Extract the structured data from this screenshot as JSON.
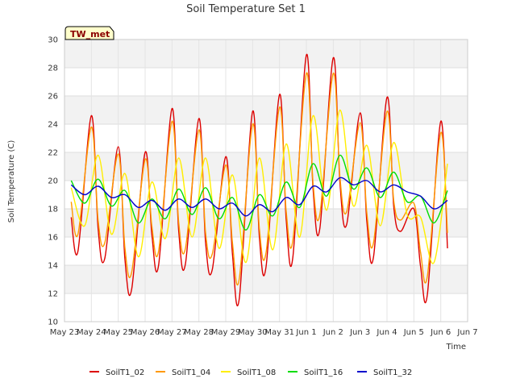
{
  "chart_data": {
    "type": "line",
    "title": "Soil Temperature Set 1",
    "xlabel": "Time",
    "ylabel": "Soil Temperature (C)",
    "badge": "TW_met",
    "ylim": [
      10,
      30
    ],
    "yticks": [
      10,
      12,
      14,
      16,
      18,
      20,
      22,
      24,
      26,
      28,
      30
    ],
    "xlim": [
      "2023-05-23",
      "2023-06-07"
    ],
    "xticks": [
      "May 23",
      "May 24",
      "May 25",
      "May 26",
      "May 27",
      "May 28",
      "May 29",
      "May 30",
      "May 31",
      "Jun 1",
      "Jun 2",
      "Jun 3",
      "Jun 4",
      "Jun 5",
      "Jun 6",
      "Jun 7"
    ],
    "grid": true,
    "legend_position": "bottom",
    "series": [
      {
        "name": "SoilT1_02",
        "color": "#dd0000",
        "x": [
          "May 23 06:00",
          "May 23 12:00",
          "May 24 00:00",
          "May 24 06:00",
          "May 24 12:00",
          "May 25 00:00",
          "May 25 06:00",
          "May 25 12:00",
          "May 26 00:00",
          "May 26 06:00",
          "May 26 12:00",
          "May 27 00:00",
          "May 27 06:00",
          "May 27 12:00",
          "May 28 00:00",
          "May 28 06:00",
          "May 28 12:00",
          "May 29 00:00",
          "May 29 06:00",
          "May 29 12:00",
          "May 30 00:00",
          "May 30 06:00",
          "May 30 12:00",
          "May 31 00:00",
          "May 31 06:00",
          "May 31 12:00",
          "Jun 1 00:00",
          "Jun 1 06:00",
          "Jun 1 12:00",
          "Jun 2 00:00",
          "Jun 2 06:00",
          "Jun 2 12:00",
          "Jun 3 00:00",
          "Jun 3 06:00",
          "Jun 3 12:00",
          "Jun 4 00:00",
          "Jun 4 06:00",
          "Jun 4 12:00",
          "Jun 5 00:00",
          "Jun 5 06:00",
          "Jun 5 12:00",
          "Jun 6 00:00",
          "Jun 6 06:00"
        ],
        "y": [
          17.4,
          15.0,
          24.6,
          16.6,
          14.5,
          22.4,
          14.4,
          12.3,
          22.0,
          16.2,
          14.0,
          25.1,
          16.4,
          14.1,
          24.4,
          15.6,
          13.7,
          21.7,
          14.8,
          11.6,
          24.9,
          16.0,
          13.9,
          26.1,
          17.2,
          14.6,
          28.9,
          19.4,
          16.6,
          28.7,
          19.8,
          16.9,
          24.8,
          17.1,
          14.6,
          25.9,
          18.2,
          16.4,
          18.0,
          13.9,
          11.9,
          24.2,
          15.2
        ]
      },
      {
        "name": "SoilT1_04",
        "color": "#ff9900",
        "x": [
          "May 23 06:00",
          "May 23 12:00",
          "May 24 00:00",
          "May 24 06:00",
          "May 24 12:00",
          "May 25 00:00",
          "May 25 06:00",
          "May 25 12:00",
          "May 26 00:00",
          "May 26 06:00",
          "May 26 12:00",
          "May 27 00:00",
          "May 27 06:00",
          "May 27 12:00",
          "May 28 00:00",
          "May 28 06:00",
          "May 28 12:00",
          "May 29 00:00",
          "May 29 06:00",
          "May 29 12:00",
          "May 30 00:00",
          "May 30 06:00",
          "May 30 12:00",
          "May 31 00:00",
          "May 31 06:00",
          "May 31 12:00",
          "Jun 1 00:00",
          "Jun 1 06:00",
          "Jun 1 12:00",
          "Jun 2 00:00",
          "Jun 2 06:00",
          "Jun 2 12:00",
          "Jun 3 00:00",
          "Jun 3 06:00",
          "Jun 3 12:00",
          "Jun 4 00:00",
          "Jun 4 06:00",
          "Jun 4 12:00",
          "Jun 5 00:00",
          "Jun 5 06:00",
          "Jun 5 12:00",
          "Jun 6 00:00",
          "Jun 6 06:00"
        ],
        "y": [
          18.5,
          16.2,
          23.8,
          17.2,
          15.6,
          21.9,
          15.2,
          13.5,
          21.5,
          16.8,
          15.0,
          24.2,
          17.0,
          15.2,
          23.6,
          16.3,
          14.8,
          21.1,
          15.6,
          13.0,
          24.0,
          16.6,
          14.9,
          25.2,
          17.8,
          15.8,
          27.6,
          19.8,
          17.6,
          27.6,
          20.2,
          17.8,
          24.1,
          17.7,
          15.6,
          24.9,
          18.6,
          17.2,
          18.4,
          14.9,
          13.2,
          23.4,
          16.3
        ]
      },
      {
        "name": "SoilT1_08",
        "color": "#ffee00",
        "x": [
          "May 23 06:00",
          "May 23 18:00",
          "May 24 06:00",
          "May 24 18:00",
          "May 25 06:00",
          "May 25 18:00",
          "May 26 06:00",
          "May 26 18:00",
          "May 27 06:00",
          "May 27 18:00",
          "May 28 06:00",
          "May 28 18:00",
          "May 29 06:00",
          "May 29 18:00",
          "May 30 06:00",
          "May 30 18:00",
          "May 31 06:00",
          "May 31 18:00",
          "Jun 1 06:00",
          "Jun 1 18:00",
          "Jun 2 06:00",
          "Jun 2 18:00",
          "Jun 3 06:00",
          "Jun 3 18:00",
          "Jun 4 06:00",
          "Jun 4 18:00",
          "Jun 5 06:00",
          "Jun 5 18:00",
          "Jun 6 06:00"
        ],
        "y": [
          19.5,
          16.8,
          21.8,
          16.2,
          20.5,
          14.6,
          19.9,
          15.9,
          21.6,
          16.0,
          21.6,
          15.2,
          20.4,
          14.2,
          21.6,
          15.1,
          22.6,
          16.0,
          24.6,
          17.9,
          25.0,
          18.2,
          22.5,
          16.8,
          22.7,
          17.6,
          17.4,
          14.2,
          21.2
        ]
      },
      {
        "name": "SoilT1_16",
        "color": "#00dd00",
        "x": [
          "May 23 06:00",
          "May 23 18:00",
          "May 24 06:00",
          "May 24 18:00",
          "May 25 06:00",
          "May 25 18:00",
          "May 26 06:00",
          "May 26 18:00",
          "May 27 06:00",
          "May 27 18:00",
          "May 28 06:00",
          "May 28 18:00",
          "May 29 06:00",
          "May 29 18:00",
          "May 30 06:00",
          "May 30 18:00",
          "May 31 06:00",
          "May 31 18:00",
          "Jun 1 06:00",
          "Jun 1 18:00",
          "Jun 2 06:00",
          "Jun 2 18:00",
          "Jun 3 06:00",
          "Jun 3 18:00",
          "Jun 4 06:00",
          "Jun 4 18:00",
          "Jun 5 06:00",
          "Jun 5 18:00",
          "Jun 6 06:00"
        ],
        "y": [
          20.0,
          18.4,
          20.1,
          18.2,
          19.3,
          17.0,
          18.7,
          17.3,
          19.4,
          17.6,
          19.5,
          17.3,
          18.8,
          16.5,
          19.0,
          17.5,
          19.9,
          18.1,
          21.2,
          18.9,
          21.8,
          19.4,
          20.9,
          18.8,
          20.6,
          18.5,
          18.9,
          17.0,
          19.3
        ]
      },
      {
        "name": "SoilT1_32",
        "color": "#0000cc",
        "x": [
          "May 23 06:00",
          "May 23 18:00",
          "May 24 06:00",
          "May 24 18:00",
          "May 25 06:00",
          "May 25 18:00",
          "May 26 06:00",
          "May 26 18:00",
          "May 27 06:00",
          "May 27 18:00",
          "May 28 06:00",
          "May 28 18:00",
          "May 29 06:00",
          "May 29 18:00",
          "May 30 06:00",
          "May 30 18:00",
          "May 31 06:00",
          "May 31 18:00",
          "Jun 1 06:00",
          "Jun 1 18:00",
          "Jun 2 06:00",
          "Jun 2 18:00",
          "Jun 3 06:00",
          "Jun 3 18:00",
          "Jun 4 06:00",
          "Jun 4 18:00",
          "Jun 5 06:00",
          "Jun 5 18:00",
          "Jun 6 06:00"
        ],
        "y": [
          19.7,
          19.0,
          19.6,
          18.8,
          19.0,
          18.1,
          18.6,
          17.9,
          18.7,
          18.1,
          18.7,
          18.0,
          18.4,
          17.5,
          18.3,
          17.8,
          18.8,
          18.3,
          19.6,
          19.2,
          20.2,
          19.7,
          20.0,
          19.2,
          19.7,
          19.2,
          18.9,
          18.0,
          18.6
        ]
      }
    ]
  }
}
